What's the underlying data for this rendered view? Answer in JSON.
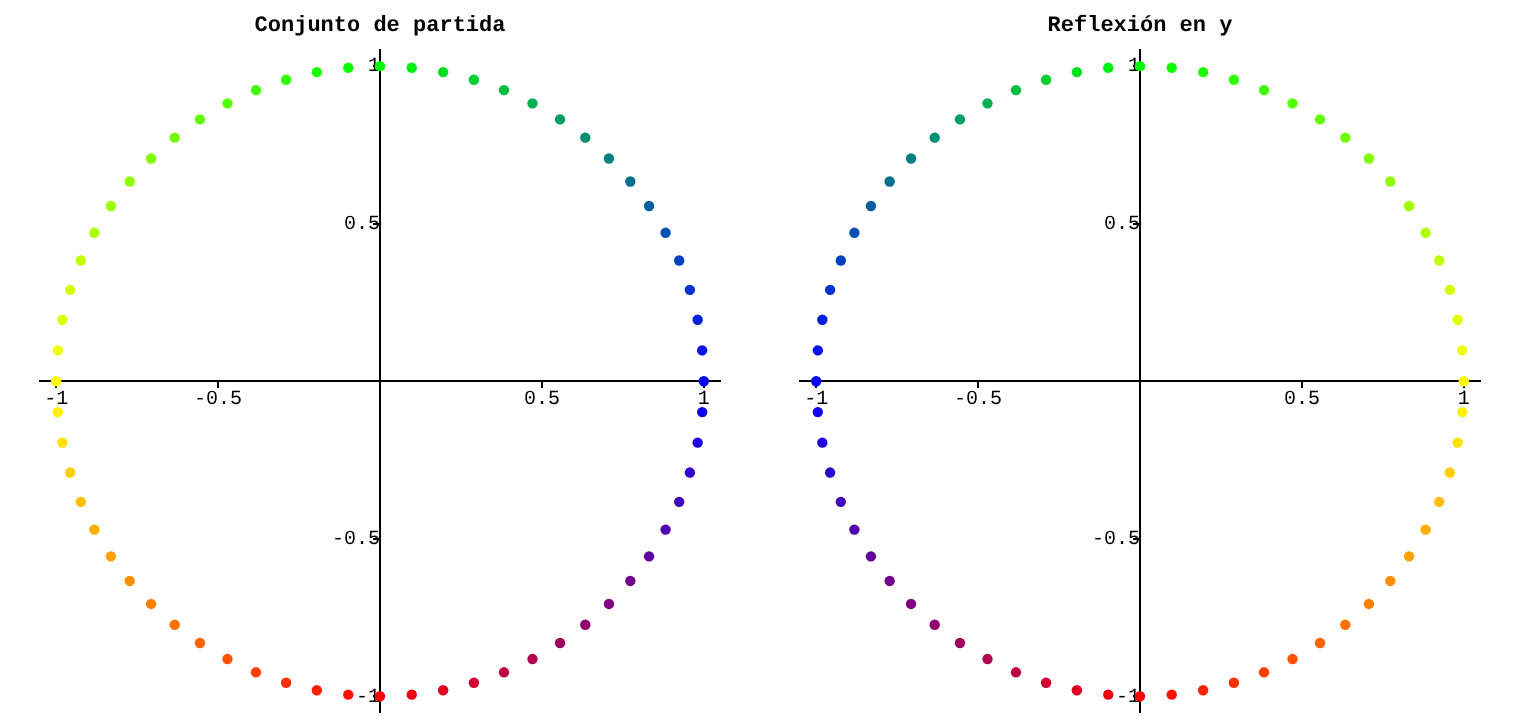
{
  "chart_data": [
    {
      "type": "scatter",
      "title": "Conjunto de partida",
      "marker": "circle",
      "grid": false,
      "xlim": [
        -1.05,
        1.05
      ],
      "ylim": [
        -1.05,
        1.05
      ],
      "xticks": [
        -1,
        -0.5,
        0.5,
        1
      ],
      "yticks": [
        -1,
        -0.5,
        0.5,
        1
      ],
      "series": [
        {
          "x": [
            1,
            0.995,
            0.981,
            0.957,
            0.924,
            0.882,
            0.831,
            0.773,
            0.707,
            0.634,
            0.556,
            0.471,
            0.383,
            0.29,
            0.195,
            0.098,
            0,
            -0.098,
            -0.195,
            -0.29,
            -0.383,
            -0.471,
            -0.556,
            -0.634,
            -0.707,
            -0.773,
            -0.831,
            -0.882,
            -0.924,
            -0.957,
            -0.981,
            -0.995,
            -1,
            -0.995,
            -0.981,
            -0.957,
            -0.924,
            -0.882,
            -0.831,
            -0.773,
            -0.707,
            -0.634,
            -0.556,
            -0.471,
            -0.383,
            -0.29,
            -0.195,
            -0.098,
            0,
            0.098,
            0.195,
            0.29,
            0.383,
            0.471,
            0.556,
            0.634,
            0.707,
            0.773,
            0.831,
            0.882,
            0.924,
            0.957,
            0.981,
            0.995
          ],
          "values": [
            0,
            0.098,
            0.195,
            0.29,
            0.383,
            0.471,
            0.556,
            0.634,
            0.707,
            0.773,
            0.831,
            0.882,
            0.924,
            0.957,
            0.981,
            0.995,
            1,
            0.995,
            0.981,
            0.957,
            0.924,
            0.882,
            0.831,
            0.773,
            0.707,
            0.634,
            0.556,
            0.471,
            0.383,
            0.29,
            0.195,
            0.098,
            0,
            -0.098,
            -0.195,
            -0.29,
            -0.383,
            -0.471,
            -0.556,
            -0.634,
            -0.707,
            -0.773,
            -0.831,
            -0.882,
            -0.924,
            -0.957,
            -0.981,
            -0.995,
            -1,
            -0.995,
            -0.981,
            -0.957,
            -0.924,
            -0.882,
            -0.831,
            -0.773,
            -0.707,
            -0.634,
            -0.556,
            -0.471,
            -0.383,
            -0.29,
            -0.195,
            -0.098
          ],
          "colors": [
            "#0000ff",
            "#0010ef",
            "#0020df",
            "#0030cf",
            "#0040bf",
            "#0050af",
            "#00609f",
            "#00708f",
            "#008080",
            "#008f70",
            "#009f60",
            "#00af50",
            "#00bf40",
            "#00cf30",
            "#00df20",
            "#00ef10",
            "#00ff00",
            "#10ff00",
            "#20ff00",
            "#30ff00",
            "#40ff00",
            "#50ff00",
            "#60ff00",
            "#70ff00",
            "#80ff00",
            "#8fff00",
            "#9fff00",
            "#afff00",
            "#bfff00",
            "#cfff00",
            "#dfff00",
            "#efff00",
            "#ffff00",
            "#ffef00",
            "#ffdf00",
            "#ffcf00",
            "#ffbf00",
            "#ffaf00",
            "#ff9f00",
            "#ff8f00",
            "#ff8000",
            "#ff7000",
            "#ff6000",
            "#ff5000",
            "#ff4000",
            "#ff3000",
            "#ff2000",
            "#ff1000",
            "#ff0000",
            "#ef0010",
            "#df0020",
            "#cf0030",
            "#bf0040",
            "#af0050",
            "#9f0060",
            "#8f0070",
            "#800080",
            "#70008f",
            "#60009f",
            "#5000af",
            "#4000bf",
            "#3000cf",
            "#2000df",
            "#1000ef"
          ]
        }
      ]
    },
    {
      "type": "scatter",
      "title": "Reflexión en y",
      "marker": "circle",
      "grid": false,
      "xlim": [
        -1.05,
        1.05
      ],
      "ylim": [
        -1.05,
        1.05
      ],
      "xticks": [
        -1,
        -0.5,
        0.5,
        1
      ],
      "yticks": [
        -1,
        -0.5,
        0.5,
        1
      ],
      "series": [
        {
          "x": [
            -1,
            -0.995,
            -0.981,
            -0.957,
            -0.924,
            -0.882,
            -0.831,
            -0.773,
            -0.707,
            -0.634,
            -0.556,
            -0.471,
            -0.383,
            -0.29,
            -0.195,
            -0.098,
            0,
            0.098,
            0.195,
            0.29,
            0.383,
            0.471,
            0.556,
            0.634,
            0.707,
            0.773,
            0.831,
            0.882,
            0.924,
            0.957,
            0.981,
            0.995,
            1,
            0.995,
            0.981,
            0.957,
            0.924,
            0.882,
            0.831,
            0.773,
            0.707,
            0.634,
            0.556,
            0.471,
            0.383,
            0.29,
            0.195,
            0.098,
            0,
            -0.098,
            -0.195,
            -0.29,
            -0.383,
            -0.471,
            -0.556,
            -0.634,
            -0.707,
            -0.773,
            -0.831,
            -0.882,
            -0.924,
            -0.957,
            -0.981,
            -0.995
          ],
          "values": [
            0,
            0.098,
            0.195,
            0.29,
            0.383,
            0.471,
            0.556,
            0.634,
            0.707,
            0.773,
            0.831,
            0.882,
            0.924,
            0.957,
            0.981,
            0.995,
            1,
            0.995,
            0.981,
            0.957,
            0.924,
            0.882,
            0.831,
            0.773,
            0.707,
            0.634,
            0.556,
            0.471,
            0.383,
            0.29,
            0.195,
            0.098,
            0,
            -0.098,
            -0.195,
            -0.29,
            -0.383,
            -0.471,
            -0.556,
            -0.634,
            -0.707,
            -0.773,
            -0.831,
            -0.882,
            -0.924,
            -0.957,
            -0.981,
            -0.995,
            -1,
            -0.995,
            -0.981,
            -0.957,
            -0.924,
            -0.882,
            -0.831,
            -0.773,
            -0.707,
            -0.634,
            -0.556,
            -0.471,
            -0.383,
            -0.29,
            -0.195,
            -0.098
          ],
          "colors": [
            "#0000ff",
            "#0010ef",
            "#0020df",
            "#0030cf",
            "#0040bf",
            "#0050af",
            "#00609f",
            "#00708f",
            "#008080",
            "#008f70",
            "#009f60",
            "#00af50",
            "#00bf40",
            "#00cf30",
            "#00df20",
            "#00ef10",
            "#00ff00",
            "#10ff00",
            "#20ff00",
            "#30ff00",
            "#40ff00",
            "#50ff00",
            "#60ff00",
            "#70ff00",
            "#80ff00",
            "#8fff00",
            "#9fff00",
            "#afff00",
            "#bfff00",
            "#cfff00",
            "#dfff00",
            "#efff00",
            "#ffff00",
            "#ffef00",
            "#ffdf00",
            "#ffcf00",
            "#ffbf00",
            "#ffaf00",
            "#ff9f00",
            "#ff8f00",
            "#ff8000",
            "#ff7000",
            "#ff6000",
            "#ff5000",
            "#ff4000",
            "#ff3000",
            "#ff2000",
            "#ff1000",
            "#ff0000",
            "#ef0010",
            "#df0020",
            "#cf0030",
            "#bf0040",
            "#af0050",
            "#9f0060",
            "#8f0070",
            "#800080",
            "#70008f",
            "#60009f",
            "#5000af",
            "#4000bf",
            "#3000cf",
            "#2000df",
            "#1000ef"
          ]
        }
      ]
    }
  ]
}
